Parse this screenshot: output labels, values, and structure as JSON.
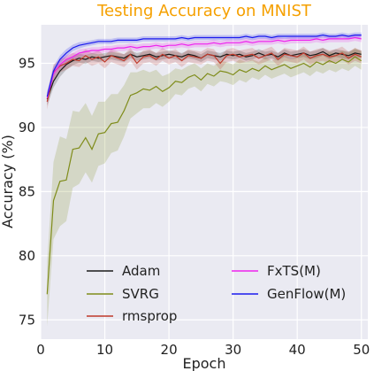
{
  "chart_data": {
    "type": "line",
    "title": "Testing Accuracy on MNIST",
    "title_color": "#f5a000",
    "xlabel": "Epoch",
    "ylabel": "Accuracy (%)",
    "xlim": [
      0,
      51
    ],
    "ylim": [
      73.5,
      98
    ],
    "xticks": [
      0,
      10,
      20,
      30,
      40,
      50
    ],
    "yticks": [
      75,
      80,
      85,
      90,
      95
    ],
    "grid": true,
    "background": "#eaeaf2",
    "legend_position": "lower-right",
    "series": [
      {
        "name": "Adam",
        "color": "#1a1a1a",
        "x": [
          1,
          2,
          3,
          4,
          5,
          6,
          7,
          8,
          9,
          10,
          11,
          12,
          13,
          14,
          15,
          16,
          17,
          18,
          19,
          20,
          21,
          22,
          23,
          24,
          25,
          26,
          27,
          28,
          29,
          30,
          31,
          32,
          33,
          34,
          35,
          36,
          37,
          38,
          39,
          40,
          41,
          42,
          43,
          44,
          45,
          46,
          47,
          48,
          49,
          50
        ],
        "y": [
          92.2,
          93.6,
          94.4,
          94.9,
          95.2,
          95.4,
          95.3,
          95.5,
          95.4,
          95.5,
          95.6,
          95.5,
          95.4,
          95.7,
          95.5,
          95.6,
          95.7,
          95.5,
          95.6,
          95.7,
          95.6,
          95.5,
          95.7,
          95.6,
          95.4,
          95.7,
          95.6,
          95.5,
          95.7,
          95.6,
          95.7,
          95.5,
          95.6,
          95.8,
          95.6,
          95.7,
          95.5,
          95.8,
          95.6,
          95.7,
          95.8,
          95.6,
          95.7,
          95.9,
          95.6,
          95.8,
          95.7,
          95.6,
          95.8,
          95.7
        ],
        "band": [
          0.5,
          0.5,
          0.45,
          0.4,
          0.35,
          0.35,
          0.35,
          0.3,
          0.3,
          0.3,
          0.3,
          0.3,
          0.3,
          0.3,
          0.3,
          0.3,
          0.3,
          0.3,
          0.3,
          0.3,
          0.3,
          0.3,
          0.3,
          0.3,
          0.3,
          0.3,
          0.3,
          0.3,
          0.3,
          0.3,
          0.3,
          0.3,
          0.3,
          0.3,
          0.3,
          0.3,
          0.3,
          0.3,
          0.3,
          0.3,
          0.3,
          0.3,
          0.3,
          0.3,
          0.3,
          0.3,
          0.3,
          0.3,
          0.3,
          0.3
        ]
      },
      {
        "name": "SVRG",
        "color": "#7f8c1a",
        "x": [
          1,
          2,
          3,
          4,
          5,
          6,
          7,
          8,
          9,
          10,
          11,
          12,
          13,
          14,
          15,
          16,
          17,
          18,
          19,
          20,
          21,
          22,
          23,
          24,
          25,
          26,
          27,
          28,
          29,
          30,
          31,
          32,
          33,
          34,
          35,
          36,
          37,
          38,
          39,
          40,
          41,
          42,
          43,
          44,
          45,
          46,
          47,
          48,
          49,
          50
        ],
        "y": [
          77.0,
          84.3,
          85.8,
          85.9,
          88.3,
          88.4,
          89.2,
          88.3,
          89.5,
          89.6,
          90.3,
          90.4,
          91.3,
          92.5,
          92.7,
          93.0,
          92.9,
          93.2,
          92.8,
          93.1,
          93.6,
          93.5,
          93.9,
          94.1,
          93.7,
          94.2,
          94.0,
          94.4,
          94.3,
          94.1,
          94.5,
          94.3,
          94.6,
          94.4,
          94.8,
          94.5,
          94.7,
          94.9,
          94.6,
          94.8,
          95.0,
          94.7,
          95.1,
          94.9,
          95.2,
          95.0,
          95.3,
          95.1,
          95.5,
          95.2
        ],
        "band": [
          2.5,
          3.0,
          3.5,
          3.2,
          3.0,
          2.8,
          2.7,
          2.6,
          2.5,
          2.4,
          2.3,
          2.2,
          2.0,
          1.8,
          1.6,
          1.5,
          1.4,
          1.3,
          1.2,
          1.1,
          1.0,
          1.0,
          0.9,
          0.9,
          0.9,
          0.8,
          0.8,
          0.8,
          0.8,
          0.8,
          0.8,
          0.8,
          0.7,
          0.7,
          0.7,
          0.7,
          0.7,
          0.7,
          0.7,
          0.7,
          0.7,
          0.7,
          0.7,
          0.7,
          0.7,
          0.7,
          0.7,
          0.7,
          0.7,
          0.7
        ]
      },
      {
        "name": "rmsprop",
        "color": "#c0392b",
        "x": [
          1,
          2,
          3,
          4,
          5,
          6,
          7,
          8,
          9,
          10,
          11,
          12,
          13,
          14,
          15,
          16,
          17,
          18,
          19,
          20,
          21,
          22,
          23,
          24,
          25,
          26,
          27,
          28,
          29,
          30,
          31,
          32,
          33,
          34,
          35,
          36,
          37,
          38,
          39,
          40,
          41,
          42,
          43,
          44,
          45,
          46,
          47,
          48,
          49,
          50
        ],
        "y": [
          92.0,
          94.3,
          94.8,
          95.0,
          95.3,
          95.2,
          95.6,
          95.3,
          95.5,
          95.1,
          95.6,
          95.4,
          95.2,
          95.7,
          95.0,
          95.5,
          95.6,
          95.3,
          95.7,
          95.4,
          95.6,
          95.2,
          95.6,
          95.5,
          95.4,
          95.7,
          95.6,
          95.0,
          95.6,
          95.7,
          95.5,
          95.6,
          95.7,
          95.4,
          95.6,
          95.8,
          95.3,
          95.7,
          95.6,
          95.5,
          95.8,
          95.4,
          95.6,
          95.7,
          95.5,
          95.6,
          95.8,
          95.4,
          95.7,
          95.5
        ],
        "band": [
          0.6,
          0.6,
          0.5,
          0.5,
          0.5,
          0.5,
          0.5,
          0.5,
          0.5,
          0.5,
          0.5,
          0.5,
          0.5,
          0.5,
          0.5,
          0.5,
          0.5,
          0.5,
          0.5,
          0.5,
          0.5,
          0.5,
          0.5,
          0.5,
          0.5,
          0.5,
          0.5,
          0.5,
          0.5,
          0.5,
          0.5,
          0.5,
          0.5,
          0.5,
          0.5,
          0.5,
          0.5,
          0.5,
          0.5,
          0.5,
          0.5,
          0.5,
          0.5,
          0.5,
          0.5,
          0.5,
          0.5,
          0.5,
          0.5,
          0.5
        ]
      },
      {
        "name": "FxTS(M)",
        "color": "#ee22ee",
        "x": [
          1,
          2,
          3,
          4,
          5,
          6,
          7,
          8,
          9,
          10,
          11,
          12,
          13,
          14,
          15,
          16,
          17,
          18,
          19,
          20,
          21,
          22,
          23,
          24,
          25,
          26,
          27,
          28,
          29,
          30,
          31,
          32,
          33,
          34,
          35,
          36,
          37,
          38,
          39,
          40,
          41,
          42,
          43,
          44,
          45,
          46,
          47,
          48,
          49,
          50
        ],
        "y": [
          92.3,
          94.2,
          94.9,
          95.3,
          95.5,
          95.8,
          95.9,
          96.0,
          96.0,
          96.1,
          96.1,
          96.2,
          96.2,
          96.3,
          96.2,
          96.3,
          96.3,
          96.4,
          96.3,
          96.4,
          96.4,
          96.5,
          96.4,
          96.5,
          96.5,
          96.5,
          96.6,
          96.5,
          96.6,
          96.6,
          96.6,
          96.7,
          96.6,
          96.7,
          96.7,
          96.7,
          96.8,
          96.7,
          96.8,
          96.8,
          96.8,
          96.8,
          96.9,
          96.8,
          96.9,
          96.9,
          96.9,
          96.9,
          97.0,
          96.9
        ],
        "band": [
          0.4,
          0.4,
          0.35,
          0.35,
          0.3,
          0.3,
          0.25,
          0.25,
          0.25,
          0.25,
          0.25,
          0.25,
          0.25,
          0.25,
          0.25,
          0.25,
          0.25,
          0.25,
          0.25,
          0.25,
          0.25,
          0.25,
          0.25,
          0.25,
          0.25,
          0.25,
          0.25,
          0.25,
          0.25,
          0.25,
          0.25,
          0.25,
          0.25,
          0.25,
          0.25,
          0.25,
          0.25,
          0.25,
          0.25,
          0.25,
          0.25,
          0.25,
          0.25,
          0.25,
          0.25,
          0.25,
          0.25,
          0.25,
          0.25,
          0.25
        ]
      },
      {
        "name": "GenFlow(M)",
        "color": "#1a1aee",
        "x": [
          1,
          2,
          3,
          4,
          5,
          6,
          7,
          8,
          9,
          10,
          11,
          12,
          13,
          14,
          15,
          16,
          17,
          18,
          19,
          20,
          21,
          22,
          23,
          24,
          25,
          26,
          27,
          28,
          29,
          30,
          31,
          32,
          33,
          34,
          35,
          36,
          37,
          38,
          39,
          40,
          41,
          42,
          43,
          44,
          45,
          46,
          47,
          48,
          49,
          50
        ],
        "y": [
          92.4,
          94.4,
          95.3,
          95.8,
          96.2,
          96.4,
          96.5,
          96.6,
          96.7,
          96.7,
          96.7,
          96.8,
          96.8,
          96.8,
          96.8,
          96.9,
          96.9,
          96.9,
          96.9,
          96.9,
          96.9,
          97.0,
          96.9,
          97.0,
          97.0,
          97.0,
          97.0,
          97.0,
          97.0,
          97.0,
          97.0,
          97.1,
          97.0,
          97.1,
          97.1,
          97.0,
          97.1,
          97.1,
          97.1,
          97.1,
          97.1,
          97.1,
          97.1,
          97.2,
          97.1,
          97.1,
          97.2,
          97.1,
          97.2,
          97.2
        ],
        "band": [
          0.4,
          0.35,
          0.3,
          0.3,
          0.25,
          0.25,
          0.2,
          0.2,
          0.2,
          0.2,
          0.2,
          0.2,
          0.2,
          0.2,
          0.2,
          0.2,
          0.2,
          0.2,
          0.2,
          0.2,
          0.2,
          0.2,
          0.2,
          0.2,
          0.2,
          0.2,
          0.2,
          0.2,
          0.2,
          0.2,
          0.2,
          0.2,
          0.2,
          0.2,
          0.2,
          0.2,
          0.2,
          0.2,
          0.2,
          0.2,
          0.2,
          0.2,
          0.2,
          0.2,
          0.2,
          0.2,
          0.2,
          0.2,
          0.2,
          0.2
        ]
      }
    ]
  }
}
